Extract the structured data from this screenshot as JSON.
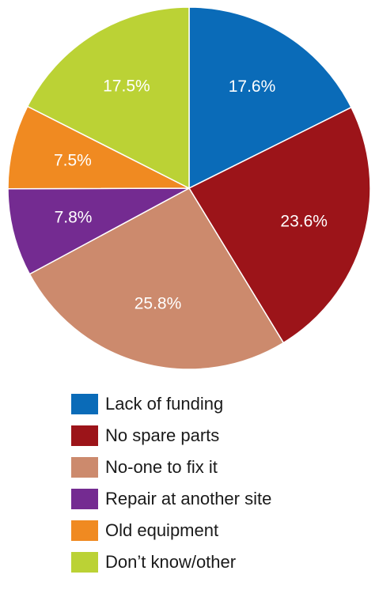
{
  "chart_data": {
    "type": "pie",
    "title": "",
    "legend_position": "bottom",
    "slices": [
      {
        "label": "Lack of funding",
        "value": 17.6,
        "value_label": "17.6%",
        "color": "#0a6bb8"
      },
      {
        "label": "No spare parts",
        "value": 23.6,
        "value_label": "23.6%",
        "color": "#9c1419"
      },
      {
        "label": "No-one to fix it",
        "value": 25.8,
        "value_label": "25.8%",
        "color": "#cc8a6d"
      },
      {
        "label": "Repair at another site",
        "value": 7.8,
        "value_label": "7.8%",
        "color": "#742b91"
      },
      {
        "label": "Old equipment",
        "value": 7.5,
        "value_label": "7.5%",
        "color": "#f08a21"
      },
      {
        "label": "Don’t know/other",
        "value": 17.5,
        "value_label": "17.5%",
        "color": "#bbd235"
      }
    ]
  }
}
